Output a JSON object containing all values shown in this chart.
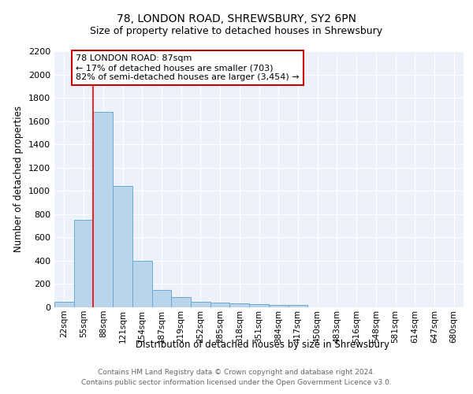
{
  "title1": "78, LONDON ROAD, SHREWSBURY, SY2 6PN",
  "title2": "Size of property relative to detached houses in Shrewsbury",
  "xlabel": "Distribution of detached houses by size in Shrewsbury",
  "ylabel": "Number of detached properties",
  "footer1": "Contains HM Land Registry data © Crown copyright and database right 2024.",
  "footer2": "Contains public sector information licensed under the Open Government Licence v3.0.",
  "annotation_line1": "78 LONDON ROAD: 87sqm",
  "annotation_line2": "← 17% of detached houses are smaller (703)",
  "annotation_line3": "82% of semi-detached houses are larger (3,454) →",
  "bar_color": "#bad4ec",
  "bar_edge_color": "#6aaad4",
  "red_line_index": 2,
  "categories": [
    "22sqm",
    "55sqm",
    "88sqm",
    "121sqm",
    "154sqm",
    "187sqm",
    "219sqm",
    "252sqm",
    "285sqm",
    "318sqm",
    "351sqm",
    "384sqm",
    "417sqm",
    "450sqm",
    "483sqm",
    "516sqm",
    "548sqm",
    "581sqm",
    "614sqm",
    "647sqm",
    "680sqm"
  ],
  "values": [
    50,
    750,
    1680,
    1040,
    400,
    150,
    85,
    50,
    40,
    35,
    30,
    20,
    20,
    0,
    0,
    0,
    0,
    0,
    0,
    0,
    0
  ],
  "ylim": [
    0,
    2200
  ],
  "yticks": [
    0,
    200,
    400,
    600,
    800,
    1000,
    1200,
    1400,
    1600,
    1800,
    2000,
    2200
  ],
  "background_color": "#edf2fa",
  "grid_color": "#ffffff",
  "annotation_box_facecolor": "#ffffff",
  "annotation_box_edgecolor": "#cc0000"
}
